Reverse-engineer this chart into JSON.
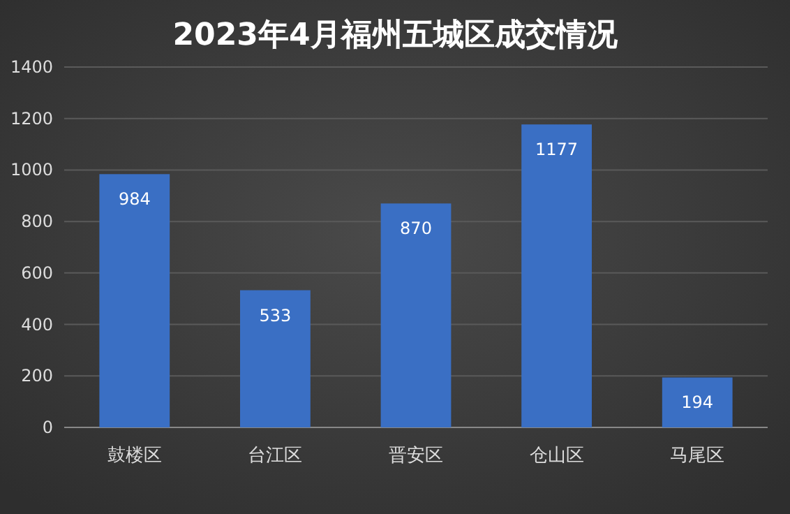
{
  "chart_data": {
    "type": "bar",
    "title": "2023年4月福州五城区成交情况",
    "categories": [
      "鼓楼区",
      "台江区",
      "晋安区",
      "仓山区",
      "马尾区"
    ],
    "values": [
      984,
      533,
      870,
      1177,
      194
    ],
    "color": "#3a6fc4",
    "ylim": [
      0,
      1400
    ],
    "yticks": [
      0,
      200,
      400,
      600,
      800,
      1000,
      1200,
      1400
    ],
    "grid": "y",
    "data_labels": true
  }
}
